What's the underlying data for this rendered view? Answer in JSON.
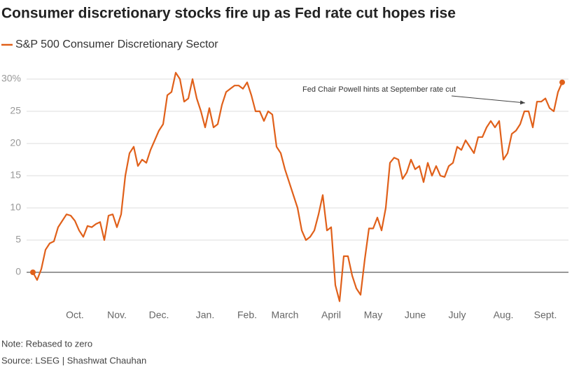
{
  "chart_data": {
    "type": "line",
    "title": "Consumer discretionary stocks fire up as Fed rate cut hopes rise",
    "note": "Note: Rebased to zero",
    "source": "Source: LSEG | Shashwat Chauhan",
    "annotation": "Fed Chair Powell hints at September rate cut",
    "categories": [
      null,
      null,
      null,
      null,
      null,
      null,
      null,
      null,
      null,
      null,
      "Oct.",
      null,
      null,
      null,
      null,
      null,
      null,
      null,
      null,
      null,
      "Nov.",
      null,
      null,
      null,
      null,
      null,
      null,
      null,
      null,
      null,
      "Dec.",
      null,
      null,
      null,
      null,
      null,
      null,
      null,
      null,
      null,
      null,
      "Jan.",
      null,
      null,
      null,
      null,
      null,
      null,
      null,
      null,
      null,
      "Feb.",
      null,
      null,
      null,
      null,
      null,
      null,
      null,
      null,
      "March",
      null,
      null,
      null,
      null,
      null,
      null,
      null,
      null,
      null,
      null,
      "April",
      null,
      null,
      null,
      null,
      null,
      null,
      null,
      null,
      null,
      "May",
      null,
      null,
      null,
      null,
      null,
      null,
      null,
      null,
      null,
      "June",
      null,
      null,
      null,
      null,
      null,
      null,
      null,
      null,
      null,
      "July",
      null,
      null,
      null,
      null,
      null,
      null,
      null,
      null,
      null,
      null,
      "Aug.",
      null,
      null,
      null,
      null,
      null,
      null,
      null,
      null,
      null,
      "Sept.",
      null,
      null,
      null,
      null
    ],
    "series": [
      {
        "name": "S&P 500 Consumer Discretionary Sector",
        "color": "#e0601a",
        "values": [
          0,
          -1.2,
          0.5,
          3.5,
          4.5,
          4.8,
          7,
          8,
          9,
          8.8,
          8,
          6.5,
          5.5,
          7.2,
          7,
          7.5,
          7.8,
          5,
          8.8,
          9,
          7,
          9,
          15,
          18.5,
          19.5,
          16.5,
          17.5,
          17,
          19,
          20.5,
          22,
          23,
          27.5,
          28,
          31,
          30,
          26.5,
          27,
          30,
          27,
          25,
          22.5,
          25.5,
          22.5,
          23,
          26,
          28,
          28.5,
          29,
          29,
          28.5,
          29.5,
          27.5,
          25,
          25,
          23.5,
          25,
          24.5,
          19.5,
          18.5,
          16,
          14,
          12,
          10,
          6.5,
          5,
          5.5,
          6.5,
          9,
          12,
          6.5,
          7,
          -2,
          -4.5,
          2.5,
          2.5,
          -0.5,
          -2.5,
          -3.5,
          2,
          6.8,
          6.8,
          8.5,
          6.5,
          10,
          17,
          17.8,
          17.5,
          14.5,
          15.5,
          17.5,
          16,
          16.5,
          14,
          17,
          15,
          16.5,
          15,
          14.8,
          16.5,
          17,
          19.5,
          19,
          20.5,
          19.5,
          18.5,
          21,
          21,
          22.5,
          23.5,
          22.5,
          23.5,
          17.5,
          18.5,
          21.5,
          22,
          23,
          25,
          25,
          22.5,
          26.5,
          26.5,
          27,
          25.5,
          25,
          28,
          29.5
        ]
      }
    ],
    "ylim": [
      -5,
      32.5
    ],
    "yticks": [
      0,
      5,
      10,
      15,
      20,
      25,
      {
        "value": 30,
        "label": "30%"
      }
    ],
    "grid": true
  }
}
